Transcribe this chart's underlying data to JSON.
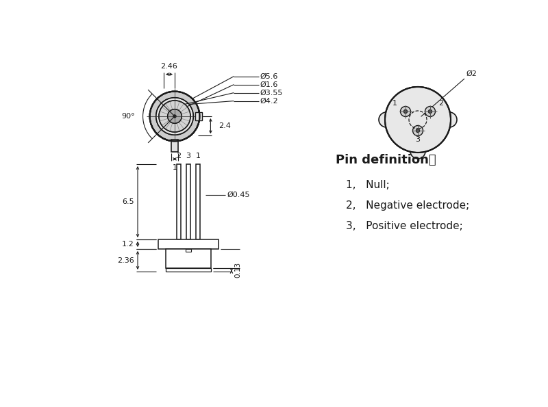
{
  "bg_color": "#ffffff",
  "line_color": "#1a1a1a",
  "dim_labels": {
    "phi56": "Ø5.6",
    "phi16": "Ø1.6",
    "phi355": "Ø3.55",
    "phi42": "Ø4.2",
    "phi2": "Ø2",
    "phi045": "Ø0.45",
    "w246": "2.46",
    "w24": "2.4",
    "angle90": "90°",
    "dim1": "1",
    "dim65": "6.5",
    "dim12": "1.2",
    "dim236": "2.36",
    "dim013": "0.13"
  },
  "pin_def_title": "Pin definition：",
  "pin_def_lines": [
    "1,   Null;",
    "2,   Negative electrode;",
    "3,   Positive electrode;"
  ],
  "pin_labels_bottom": [
    "2",
    "3",
    "1"
  ],
  "pin_labels_right": [
    "1",
    "2",
    "3"
  ]
}
